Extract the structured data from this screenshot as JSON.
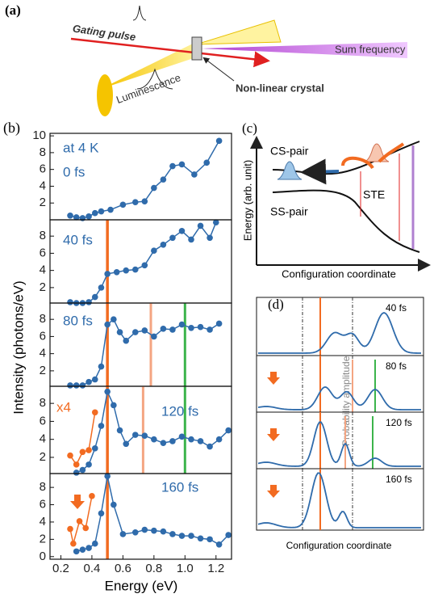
{
  "panel_a": {
    "label": "(a)",
    "gating": "Gating pulse",
    "sum": "Sum frequency",
    "lum": "Luminescence",
    "crystal": "Non-linear crystal"
  },
  "panel_b": {
    "label": "(b)",
    "ylabel": "Intensity (photons/eV)",
    "xlabel": "Energy (eV)"
  },
  "panel_c": {
    "label": "(c)",
    "ylabel": "Energy (arb. unit)",
    "xlabel": "Configuration coordinate",
    "cs": "CS-pair",
    "ss": "SS-pair",
    "ste": "STE"
  },
  "panel_d": {
    "label": "(d)",
    "ylabel": "Probability amplitude",
    "xlabel": "Configuration coordinate",
    "times": [
      "40 fs",
      "80 fs",
      "120 fs",
      "160 fs"
    ]
  },
  "chart_data": [
    {
      "type": "line",
      "annotations": [
        "at 4 K",
        "0 fs"
      ],
      "xlim": [
        0.13,
        1.3
      ],
      "ylim": [
        0,
        10.3
      ],
      "yticks": [
        2,
        4,
        6,
        8,
        10
      ],
      "series": [
        {
          "color": "#2f6bab",
          "x": [
            0.26,
            0.3,
            0.34,
            0.38,
            0.42,
            0.46,
            0.52,
            0.6,
            0.68,
            0.74,
            0.8,
            0.86,
            0.92,
            0.98,
            1.06,
            1.14,
            1.22
          ],
          "values": [
            0.5,
            0.3,
            0.2,
            0.4,
            0.8,
            1.0,
            1.2,
            1.8,
            2.1,
            2.2,
            3.8,
            4.8,
            6.4,
            6.6,
            5.4,
            6.8,
            9.4
          ]
        }
      ],
      "vlines": []
    },
    {
      "type": "line",
      "annotations": [
        "40 fs"
      ],
      "xlim": [
        0.13,
        1.3
      ],
      "ylim": [
        0.2,
        9.9
      ],
      "yticks": [
        2,
        4,
        6,
        8
      ],
      "series": [
        {
          "color": "#2f6bab",
          "x": [
            0.26,
            0.3,
            0.34,
            0.38,
            0.42,
            0.46,
            0.5,
            0.56,
            0.62,
            0.68,
            0.74,
            0.8,
            0.86,
            0.92,
            0.98,
            1.04,
            1.1,
            1.16,
            1.2
          ],
          "values": [
            0.3,
            0.2,
            0.2,
            0.3,
            0.9,
            2.0,
            3.6,
            3.8,
            4.0,
            4.1,
            4.6,
            6.3,
            7.0,
            7.8,
            8.6,
            7.6,
            9.2,
            7.8,
            9.6
          ]
        }
      ],
      "vlines": [
        {
          "x": 0.5,
          "color": "#f26b21"
        }
      ]
    },
    {
      "type": "line",
      "annotations": [
        "80 fs"
      ],
      "xlim": [
        0.13,
        1.3
      ],
      "ylim": [
        0.2,
        9.9
      ],
      "yticks": [
        2,
        4,
        6,
        8
      ],
      "series": [
        {
          "color": "#2f6bab",
          "x": [
            0.26,
            0.3,
            0.34,
            0.38,
            0.42,
            0.46,
            0.5,
            0.54,
            0.58,
            0.62,
            0.68,
            0.74,
            0.8,
            0.86,
            0.92,
            0.98,
            1.04,
            1.1,
            1.16,
            1.22
          ],
          "values": [
            0.3,
            0.3,
            0.3,
            0.7,
            1.0,
            2.5,
            7.4,
            8.0,
            6.5,
            5.5,
            6.5,
            6.7,
            6.0,
            6.9,
            6.8,
            7.4,
            7.0,
            7.1,
            6.8,
            7.5
          ]
        }
      ],
      "vlines": [
        {
          "x": 0.5,
          "color": "#f26b21"
        },
        {
          "x": 0.78,
          "color": "#f4a582"
        },
        {
          "x": 1.0,
          "color": "#3cb44b"
        }
      ]
    },
    {
      "type": "line",
      "annotations": [
        "120 fs",
        "x4"
      ],
      "xlim": [
        0.13,
        1.3
      ],
      "ylim": [
        0.2,
        9.9
      ],
      "yticks": [
        2,
        4,
        6,
        8
      ],
      "series": [
        {
          "color": "#2f6bab",
          "x": [
            0.3,
            0.34,
            0.38,
            0.42,
            0.46,
            0.5,
            0.54,
            0.58,
            0.62,
            0.68,
            0.74,
            0.8,
            0.86,
            0.92,
            0.98,
            1.04,
            1.1,
            1.16,
            1.22,
            1.28
          ],
          "values": [
            0.3,
            0.6,
            1.2,
            3.0,
            5.5,
            9.3,
            7.8,
            5.0,
            3.5,
            4.5,
            4.4,
            4.0,
            3.6,
            3.8,
            4.3,
            4.0,
            3.8,
            3.2,
            4.0,
            5.0
          ]
        },
        {
          "color": "#f26b21",
          "x": [
            0.26,
            0.3,
            0.34,
            0.38,
            0.42
          ],
          "values": [
            2.2,
            1.2,
            2.6,
            2.8,
            7.0
          ]
        }
      ],
      "vlines": [
        {
          "x": 0.5,
          "color": "#f26b21"
        },
        {
          "x": 0.73,
          "color": "#f4a582"
        },
        {
          "x": 1.0,
          "color": "#3cb44b"
        }
      ]
    },
    {
      "type": "line",
      "annotations": [
        "160 fs"
      ],
      "xlim": [
        0.13,
        1.3
      ],
      "ylim": [
        -0.3,
        9.6
      ],
      "yticks": [
        0,
        2,
        4,
        6,
        8
      ],
      "xticks": [
        0.2,
        0.4,
        0.6,
        0.8,
        {
          "value": 1,
          "label": "1.0"
        },
        1.2
      ],
      "series": [
        {
          "color": "#2f6bab",
          "x": [
            0.3,
            0.34,
            0.38,
            0.42,
            0.46,
            0.5,
            0.54,
            0.6,
            0.68,
            0.74,
            0.8,
            0.86,
            0.92,
            0.98,
            1.04,
            1.1,
            1.16,
            1.22,
            1.28
          ],
          "values": [
            0.6,
            0.8,
            1.0,
            1.5,
            5.0,
            9.3,
            6.0,
            2.6,
            2.8,
            3.1,
            3.0,
            2.9,
            2.6,
            2.4,
            2.4,
            2.1,
            2.0,
            1.4,
            2.5
          ]
        },
        {
          "color": "#f26b21",
          "x": [
            0.26,
            0.28,
            0.32,
            0.36,
            0.4
          ],
          "values": [
            3.2,
            1.5,
            4.1,
            3.3,
            7.0
          ]
        }
      ],
      "vlines": [
        {
          "x": 0.5,
          "color": "#f26b21"
        }
      ]
    }
  ]
}
